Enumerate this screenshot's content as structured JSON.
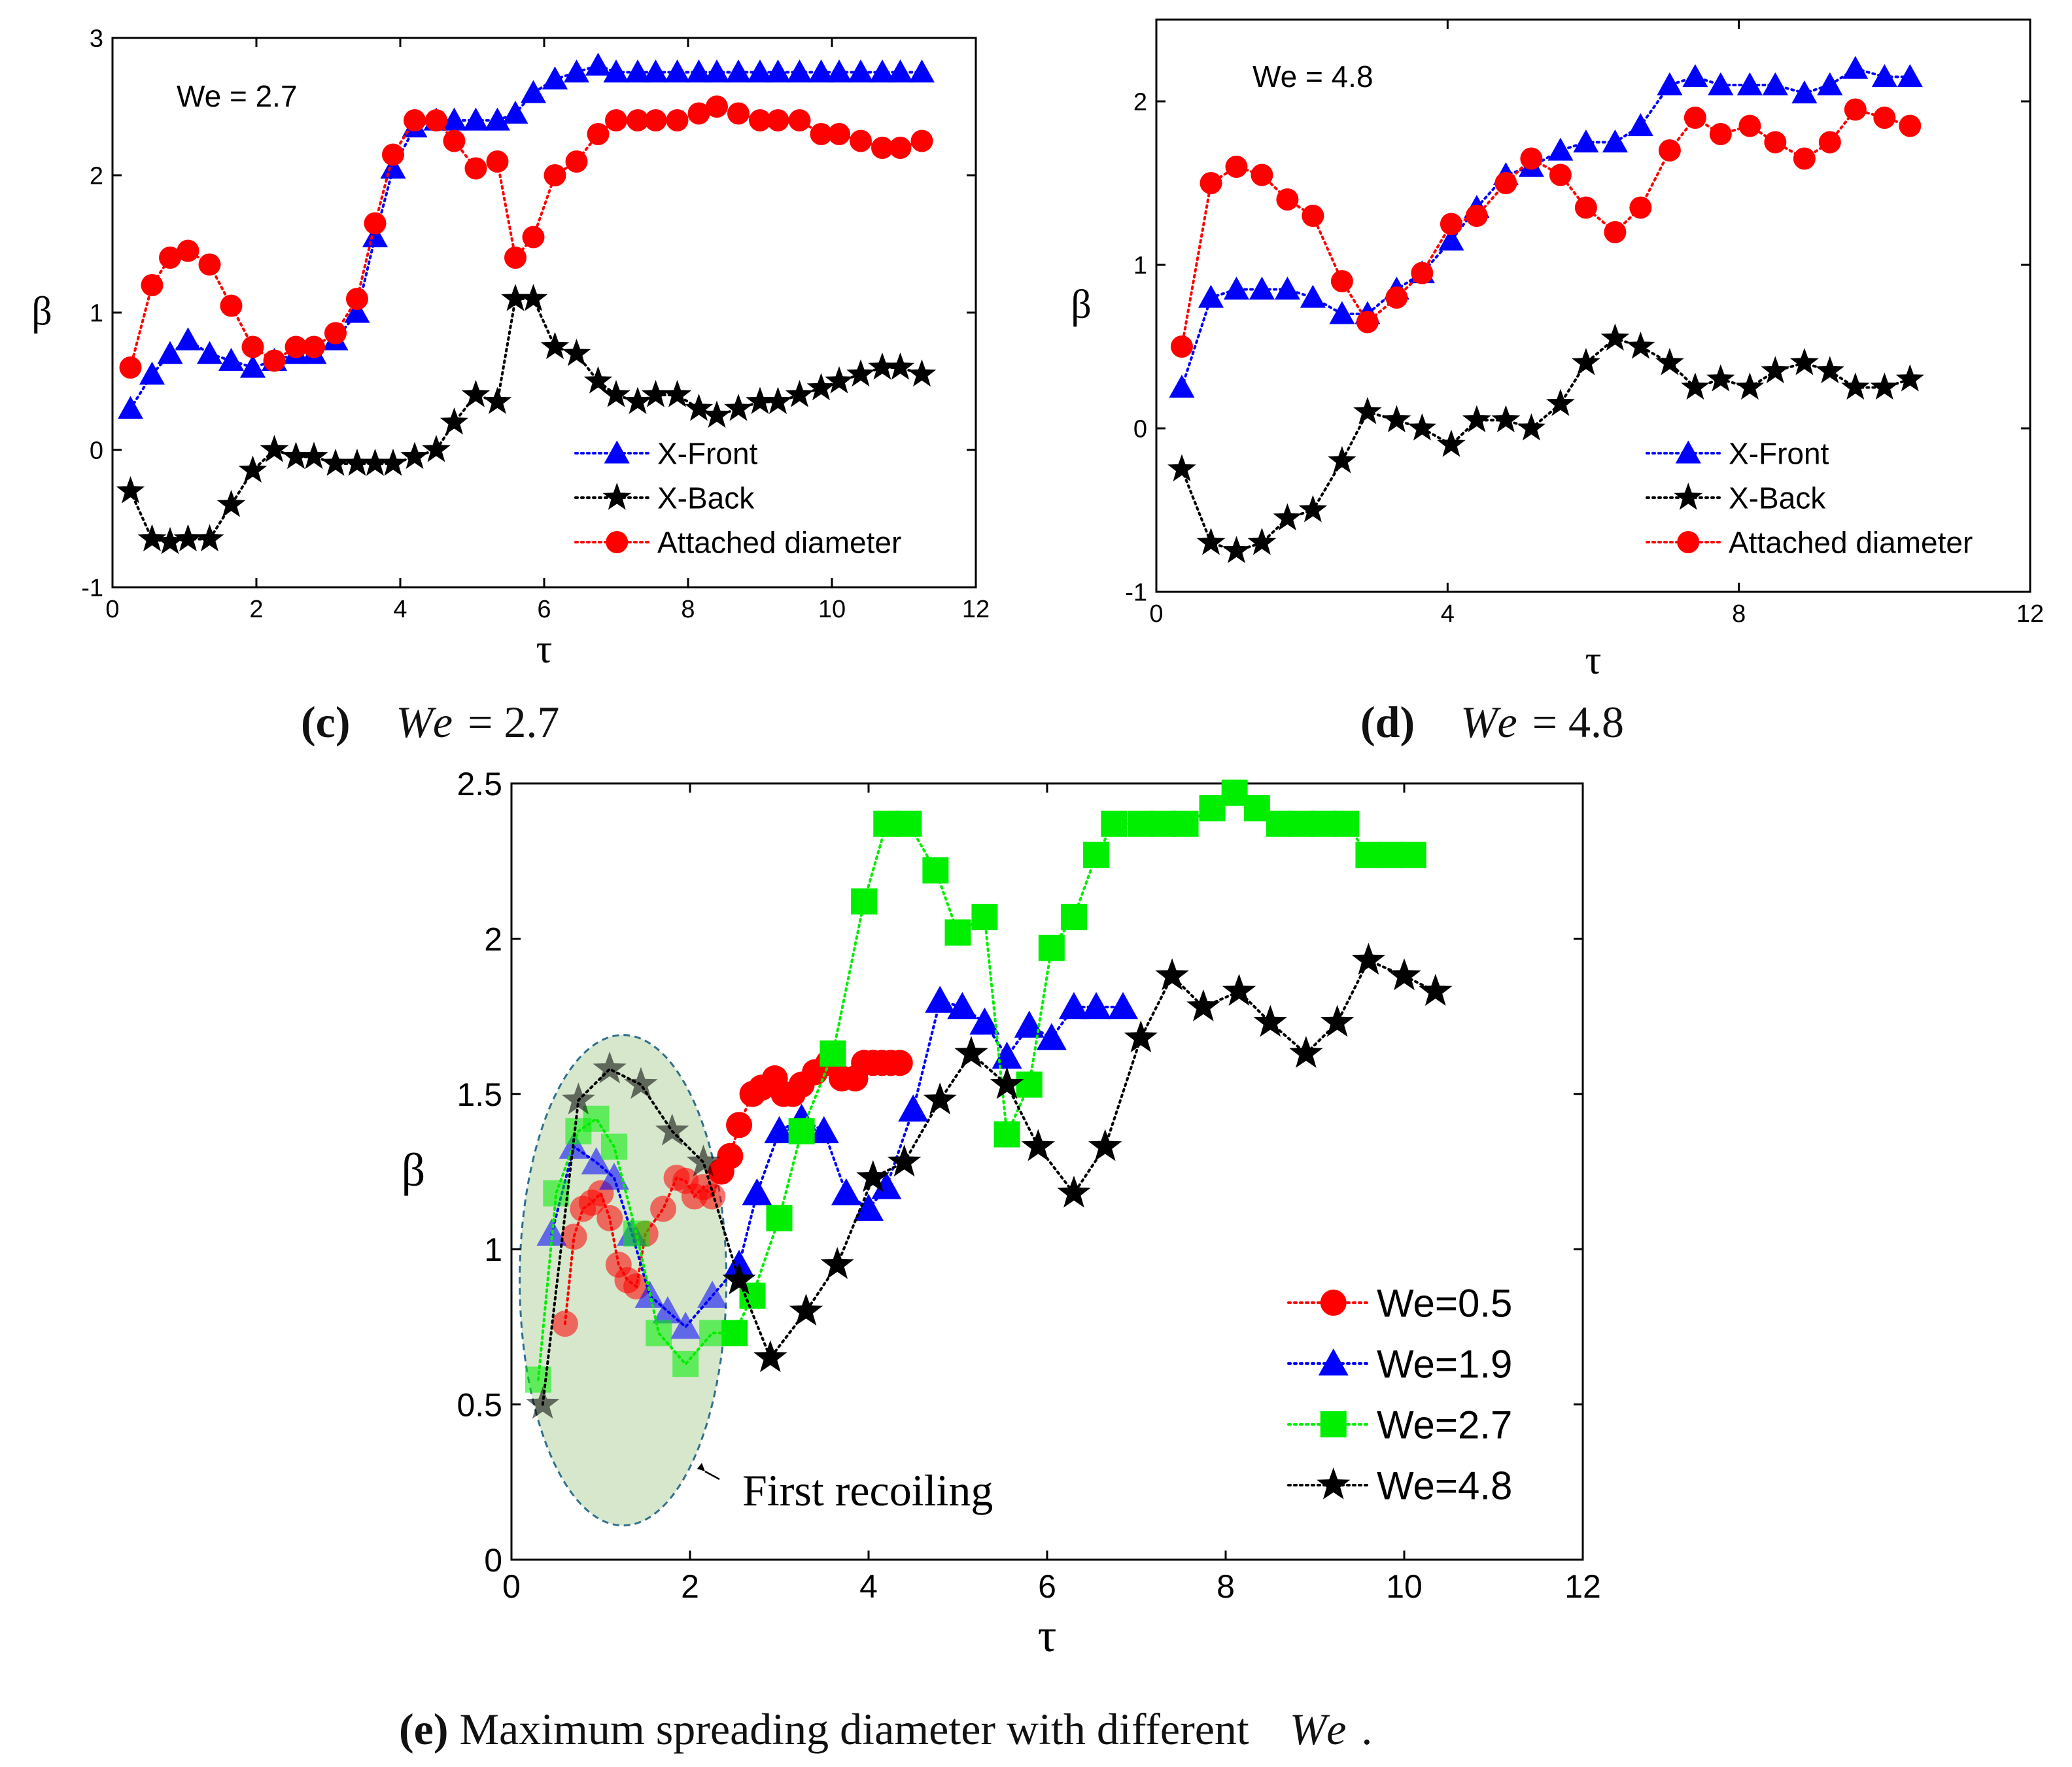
{
  "chart_data": [
    {
      "id": "c",
      "type": "line",
      "annotation": "We = 2.7",
      "xlabel": "τ",
      "ylabel": "β",
      "xlim": [
        0,
        12
      ],
      "ylim": [
        -1,
        3
      ],
      "xticks": [
        "0",
        "2",
        "4",
        "6",
        "8",
        "10",
        "12"
      ],
      "yticks": [
        "-1",
        "0",
        "1",
        "2",
        "3"
      ],
      "legend_position": "bottom-right",
      "series": [
        {
          "name": "X-Front",
          "color": "#0000ff",
          "marker": "triangle",
          "x": [
            0.25,
            0.55,
            0.8,
            1.05,
            1.35,
            1.65,
            1.95,
            2.25,
            2.55,
            2.8,
            3.1,
            3.4,
            3.65,
            3.9,
            4.2,
            4.5,
            4.75,
            5.05,
            5.35,
            5.6,
            5.85,
            6.15,
            6.45,
            6.75,
            7.0,
            7.3,
            7.55,
            7.85,
            8.15,
            8.4,
            8.7,
            9.0,
            9.25,
            9.55,
            9.85,
            10.1,
            10.4,
            10.7,
            10.95,
            11.25
          ],
          "y": [
            0.3,
            0.55,
            0.7,
            0.8,
            0.7,
            0.65,
            0.6,
            0.65,
            0.7,
            0.7,
            0.8,
            1.0,
            1.55,
            2.05,
            2.35,
            2.4,
            2.4,
            2.4,
            2.4,
            2.45,
            2.6,
            2.7,
            2.75,
            2.8,
            2.75,
            2.75,
            2.75,
            2.75,
            2.75,
            2.75,
            2.75,
            2.75,
            2.75,
            2.75,
            2.75,
            2.75,
            2.75,
            2.75,
            2.75,
            2.75
          ]
        },
        {
          "name": "X-Back",
          "color": "#000000",
          "marker": "star",
          "x": [
            0.25,
            0.55,
            0.8,
            1.05,
            1.35,
            1.65,
            1.95,
            2.25,
            2.55,
            2.8,
            3.1,
            3.4,
            3.65,
            3.9,
            4.2,
            4.5,
            4.75,
            5.05,
            5.35,
            5.6,
            5.85,
            6.15,
            6.45,
            6.75,
            7.0,
            7.3,
            7.55,
            7.85,
            8.15,
            8.4,
            8.7,
            9.0,
            9.25,
            9.55,
            9.85,
            10.1,
            10.4,
            10.7,
            10.95,
            11.25
          ],
          "y": [
            -0.3,
            -0.65,
            -0.67,
            -0.65,
            -0.65,
            -0.4,
            -0.15,
            0.0,
            -0.05,
            -0.05,
            -0.1,
            -0.1,
            -0.1,
            -0.1,
            -0.05,
            0.0,
            0.2,
            0.4,
            0.35,
            1.1,
            1.1,
            0.75,
            0.7,
            0.5,
            0.4,
            0.35,
            0.4,
            0.4,
            0.3,
            0.25,
            0.3,
            0.35,
            0.35,
            0.4,
            0.45,
            0.5,
            0.55,
            0.6,
            0.6,
            0.55
          ]
        },
        {
          "name": "Attached diameter",
          "color": "#ff0000",
          "marker": "circle",
          "x": [
            0.25,
            0.55,
            0.8,
            1.05,
            1.35,
            1.65,
            1.95,
            2.25,
            2.55,
            2.8,
            3.1,
            3.4,
            3.65,
            3.9,
            4.2,
            4.5,
            4.75,
            5.05,
            5.35,
            5.6,
            5.85,
            6.15,
            6.45,
            6.75,
            7.0,
            7.3,
            7.55,
            7.85,
            8.15,
            8.4,
            8.7,
            9.0,
            9.25,
            9.55,
            9.85,
            10.1,
            10.4,
            10.7,
            10.95,
            11.25
          ],
          "y": [
            0.6,
            1.2,
            1.4,
            1.45,
            1.35,
            1.05,
            0.75,
            0.65,
            0.75,
            0.75,
            0.85,
            1.1,
            1.65,
            2.15,
            2.4,
            2.4,
            2.25,
            2.05,
            2.1,
            1.4,
            1.55,
            2.0,
            2.1,
            2.3,
            2.4,
            2.4,
            2.4,
            2.4,
            2.45,
            2.5,
            2.45,
            2.4,
            2.4,
            2.4,
            2.3,
            2.3,
            2.25,
            2.2,
            2.2,
            2.25
          ]
        }
      ]
    },
    {
      "id": "d",
      "type": "line",
      "annotation": "We = 4.8",
      "xlabel": "τ",
      "ylabel": "β",
      "xlim": [
        0,
        12
      ],
      "ylim": [
        -1,
        2.5
      ],
      "xticks": [
        "0",
        "4",
        "8",
        "12"
      ],
      "yticks": [
        "-1",
        "0",
        "1",
        "2"
      ],
      "legend_position": "bottom-right",
      "series": [
        {
          "name": "X-Front",
          "color": "#0000ff",
          "marker": "triangle",
          "x": [
            0.35,
            0.75,
            1.1,
            1.45,
            1.8,
            2.15,
            2.55,
            2.9,
            3.3,
            3.65,
            4.05,
            4.4,
            4.8,
            5.15,
            5.55,
            5.9,
            6.3,
            6.65,
            7.05,
            7.4,
            7.75,
            8.15,
            8.5,
            8.9,
            9.25,
            9.6,
            10.0,
            10.35
          ],
          "y": [
            0.25,
            0.8,
            0.85,
            0.85,
            0.85,
            0.8,
            0.7,
            0.7,
            0.85,
            0.95,
            1.15,
            1.35,
            1.55,
            1.6,
            1.7,
            1.75,
            1.75,
            1.85,
            2.1,
            2.15,
            2.1,
            2.1,
            2.1,
            2.05,
            2.1,
            2.2,
            2.15,
            2.15
          ]
        },
        {
          "name": "X-Back",
          "color": "#000000",
          "marker": "star",
          "x": [
            0.35,
            0.75,
            1.1,
            1.45,
            1.8,
            2.15,
            2.55,
            2.9,
            3.3,
            3.65,
            4.05,
            4.4,
            4.8,
            5.15,
            5.55,
            5.9,
            6.3,
            6.65,
            7.05,
            7.4,
            7.75,
            8.15,
            8.5,
            8.9,
            9.25,
            9.6,
            10.0,
            10.35
          ],
          "y": [
            -0.25,
            -0.7,
            -0.75,
            -0.7,
            -0.55,
            -0.5,
            -0.2,
            0.1,
            0.05,
            0.0,
            -0.1,
            0.05,
            0.05,
            0.0,
            0.15,
            0.4,
            0.55,
            0.5,
            0.4,
            0.25,
            0.3,
            0.25,
            0.35,
            0.4,
            0.35,
            0.25,
            0.25,
            0.3
          ]
        },
        {
          "name": "Attached diameter",
          "color": "#ff0000",
          "marker": "circle",
          "x": [
            0.35,
            0.75,
            1.1,
            1.45,
            1.8,
            2.15,
            2.55,
            2.9,
            3.3,
            3.65,
            4.05,
            4.4,
            4.8,
            5.15,
            5.55,
            5.9,
            6.3,
            6.65,
            7.05,
            7.4,
            7.75,
            8.15,
            8.5,
            8.9,
            9.25,
            9.6,
            10.0,
            10.35
          ],
          "y": [
            0.5,
            1.5,
            1.6,
            1.55,
            1.4,
            1.3,
            0.9,
            0.65,
            0.8,
            0.95,
            1.25,
            1.3,
            1.5,
            1.65,
            1.55,
            1.35,
            1.2,
            1.35,
            1.7,
            1.9,
            1.8,
            1.85,
            1.75,
            1.65,
            1.75,
            1.95,
            1.9,
            1.85
          ]
        }
      ]
    },
    {
      "id": "e",
      "type": "line",
      "xlabel": "τ",
      "ylabel": "β",
      "xlim": [
        0,
        12
      ],
      "ylim": [
        0,
        2.5
      ],
      "xticks": [
        "0",
        "2",
        "4",
        "6",
        "8",
        "10",
        "12"
      ],
      "yticks": [
        "0",
        "0.5",
        "1",
        "1.5",
        "2",
        "2.5"
      ],
      "legend_position": "bottom-right",
      "annotation": "First recoiling",
      "series": [
        {
          "name": "We=0.5",
          "color": "#ff0000",
          "marker": "circle",
          "x": [
            0.6,
            0.7,
            0.8,
            0.9,
            1.0,
            1.1,
            1.2,
            1.3,
            1.4,
            1.5,
            1.7,
            1.85,
            1.95,
            2.05,
            2.15,
            2.25,
            2.35,
            2.45,
            2.55,
            2.7,
            2.8,
            2.95,
            3.05,
            3.15,
            3.25,
            3.4,
            3.55,
            3.7,
            3.85,
            3.95,
            4.05,
            4.15,
            4.25,
            4.35
          ],
          "y": [
            0.76,
            1.04,
            1.13,
            1.15,
            1.18,
            1.1,
            0.95,
            0.9,
            0.88,
            1.05,
            1.13,
            1.23,
            1.22,
            1.17,
            1.2,
            1.17,
            1.25,
            1.3,
            1.4,
            1.5,
            1.52,
            1.55,
            1.5,
            1.5,
            1.53,
            1.57,
            1.6,
            1.55,
            1.55,
            1.6,
            1.6,
            1.6,
            1.6,
            1.6
          ]
        },
        {
          "name": "We=1.9",
          "color": "#0000ff",
          "marker": "triangle",
          "x": [
            0.45,
            0.7,
            0.95,
            1.15,
            1.35,
            1.55,
            1.75,
            1.95,
            2.25,
            2.55,
            2.75,
            3.0,
            3.25,
            3.5,
            3.75,
            4.0,
            4.2,
            4.5,
            4.8,
            5.05,
            5.3,
            5.55,
            5.8,
            6.05,
            6.3,
            6.55,
            6.85
          ],
          "y": [
            1.05,
            1.33,
            1.28,
            1.23,
            1.05,
            0.85,
            0.8,
            0.75,
            0.85,
            0.95,
            1.18,
            1.38,
            1.42,
            1.38,
            1.18,
            1.13,
            1.2,
            1.45,
            1.8,
            1.78,
            1.73,
            1.62,
            1.72,
            1.68,
            1.78,
            1.78,
            1.78
          ]
        },
        {
          "name": "We=2.7",
          "color": "#00ee00",
          "marker": "square",
          "x": [
            0.3,
            0.5,
            0.75,
            0.95,
            1.15,
            1.4,
            1.65,
            1.95,
            2.25,
            2.5,
            2.7,
            3.0,
            3.25,
            3.6,
            3.95,
            4.2,
            4.45,
            4.75,
            5.0,
            5.3,
            5.55,
            5.8,
            6.05,
            6.3,
            6.55,
            6.75,
            7.05,
            7.3,
            7.55,
            7.85,
            8.1,
            8.35,
            8.6,
            8.85,
            9.1,
            9.35,
            9.6,
            9.85,
            10.1
          ],
          "y": [
            0.58,
            1.18,
            1.38,
            1.42,
            1.33,
            1.05,
            0.73,
            0.63,
            0.73,
            0.73,
            0.85,
            1.1,
            1.38,
            1.63,
            2.12,
            2.37,
            2.37,
            2.22,
            2.02,
            2.07,
            1.37,
            1.53,
            1.97,
            2.07,
            2.27,
            2.37,
            2.37,
            2.37,
            2.37,
            2.42,
            2.47,
            2.42,
            2.37,
            2.37,
            2.37,
            2.37,
            2.27,
            2.27,
            2.27
          ]
        },
        {
          "name": "We=4.8",
          "color": "#000000",
          "marker": "star",
          "x": [
            0.35,
            0.75,
            1.1,
            1.45,
            1.8,
            2.15,
            2.55,
            2.9,
            3.3,
            3.65,
            4.05,
            4.4,
            4.8,
            5.15,
            5.55,
            5.9,
            6.3,
            6.65,
            7.05,
            7.4,
            7.75,
            8.15,
            8.5,
            8.9,
            9.25,
            9.6,
            10.0,
            10.35
          ],
          "y": [
            0.5,
            1.48,
            1.58,
            1.53,
            1.38,
            1.28,
            0.9,
            0.65,
            0.8,
            0.95,
            1.23,
            1.28,
            1.48,
            1.63,
            1.53,
            1.33,
            1.18,
            1.33,
            1.68,
            1.88,
            1.78,
            1.83,
            1.73,
            1.63,
            1.73,
            1.93,
            1.88,
            1.83
          ]
        }
      ]
    }
  ],
  "captions": {
    "c": {
      "label": "(c)",
      "we": "We",
      "rest": "= 2.7"
    },
    "d": {
      "label": "(d)",
      "we": "We",
      "rest": "= 4.8"
    },
    "e": {
      "label": "(e)",
      "text": "Maximum spreading diameter with different",
      "we": "We",
      "tail": "."
    }
  }
}
